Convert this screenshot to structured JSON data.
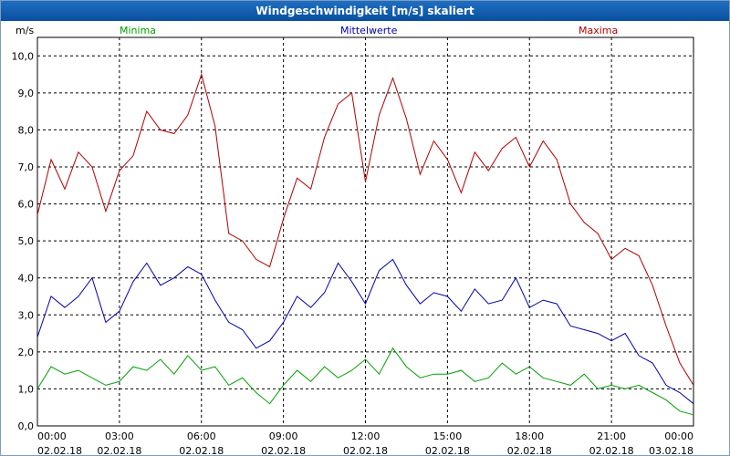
{
  "window": {
    "title": "Windgeschwindigkeit [m/s] skaliert"
  },
  "chart_data": {
    "type": "line",
    "title": "Windgeschwindigkeit [m/s] skaliert",
    "ylabel": "m/s",
    "xlabel": "",
    "ylim": [
      0,
      10.5
    ],
    "grid": true,
    "legend_position": "top",
    "y_ticks": [
      "0,0",
      "1,0",
      "2,0",
      "3,0",
      "4,0",
      "5,0",
      "6,0",
      "7,0",
      "8,0",
      "9,0",
      "10,0"
    ],
    "x_ticks": [
      {
        "time": "00:00",
        "date": "02.02.18"
      },
      {
        "time": "03:00",
        "date": "02.02.18"
      },
      {
        "time": "06:00",
        "date": "02.02.18"
      },
      {
        "time": "09:00",
        "date": "02.02.18"
      },
      {
        "time": "12:00",
        "date": "02.02.18"
      },
      {
        "time": "15:00",
        "date": "02.02.18"
      },
      {
        "time": "18:00",
        "date": "02.02.18"
      },
      {
        "time": "21:00",
        "date": "02.02.18"
      },
      {
        "time": "00:00",
        "date": "03.02.18"
      }
    ],
    "x_unit": "hours",
    "x_range": [
      0,
      24
    ],
    "series": [
      {
        "name": "Minima",
        "color": "#00a000",
        "x": [
          0,
          0.5,
          1,
          1.5,
          2,
          2.5,
          3,
          3.5,
          4,
          4.5,
          5,
          5.5,
          6,
          6.5,
          7,
          7.5,
          8,
          8.5,
          9,
          9.5,
          10,
          10.5,
          11,
          11.5,
          12,
          12.5,
          13,
          13.5,
          14,
          14.5,
          15,
          15.5,
          16,
          16.5,
          17,
          17.5,
          18,
          18.5,
          19,
          19.5,
          20,
          20.5,
          21,
          21.5,
          22,
          22.5,
          23,
          23.5,
          24
        ],
        "values": [
          1.0,
          1.6,
          1.4,
          1.5,
          1.3,
          1.1,
          1.2,
          1.6,
          1.5,
          1.8,
          1.4,
          1.9,
          1.5,
          1.6,
          1.1,
          1.3,
          0.9,
          0.6,
          1.1,
          1.5,
          1.2,
          1.6,
          1.3,
          1.5,
          1.8,
          1.4,
          2.1,
          1.6,
          1.3,
          1.4,
          1.4,
          1.5,
          1.2,
          1.3,
          1.7,
          1.4,
          1.6,
          1.3,
          1.2,
          1.1,
          1.4,
          1.0,
          1.1,
          1.0,
          1.1,
          0.9,
          0.7,
          0.4,
          0.3
        ]
      },
      {
        "name": "Mittelwerte",
        "color": "#0000b0",
        "x": [
          0,
          0.5,
          1,
          1.5,
          2,
          2.5,
          3,
          3.5,
          4,
          4.5,
          5,
          5.5,
          6,
          6.5,
          7,
          7.5,
          8,
          8.5,
          9,
          9.5,
          10,
          10.5,
          11,
          11.5,
          12,
          12.5,
          13,
          13.5,
          14,
          14.5,
          15,
          15.5,
          16,
          16.5,
          17,
          17.5,
          18,
          18.5,
          19,
          19.5,
          20,
          20.5,
          21,
          21.5,
          22,
          22.5,
          23,
          23.5,
          24
        ],
        "values": [
          2.4,
          3.5,
          3.2,
          3.5,
          4.0,
          2.8,
          3.1,
          3.9,
          4.4,
          3.8,
          4.0,
          4.3,
          4.1,
          3.4,
          2.8,
          2.6,
          2.1,
          2.3,
          2.8,
          3.5,
          3.2,
          3.6,
          4.4,
          3.9,
          3.3,
          4.2,
          4.5,
          3.8,
          3.3,
          3.6,
          3.5,
          3.1,
          3.7,
          3.3,
          3.4,
          4.0,
          3.2,
          3.4,
          3.3,
          2.7,
          2.6,
          2.5,
          2.3,
          2.5,
          1.9,
          1.7,
          1.1,
          0.9,
          0.6
        ]
      },
      {
        "name": "Maxima",
        "color": "#b00000",
        "x": [
          0,
          0.5,
          1,
          1.5,
          2,
          2.5,
          3,
          3.5,
          4,
          4.5,
          5,
          5.5,
          6,
          6.5,
          7,
          7.5,
          8,
          8.5,
          9,
          9.5,
          10,
          10.5,
          11,
          11.5,
          12,
          12.5,
          13,
          13.5,
          14,
          14.5,
          15,
          15.5,
          16,
          16.5,
          17,
          17.5,
          18,
          18.5,
          19,
          19.5,
          20,
          20.5,
          21,
          21.5,
          22,
          22.5,
          23,
          23.5,
          24
        ],
        "values": [
          5.7,
          7.2,
          6.4,
          7.4,
          7.0,
          5.8,
          6.9,
          7.3,
          8.5,
          8.0,
          7.9,
          8.4,
          9.5,
          8.1,
          5.2,
          5.0,
          4.5,
          4.3,
          5.6,
          6.7,
          6.4,
          7.8,
          8.7,
          9.0,
          6.6,
          8.4,
          9.4,
          8.3,
          6.8,
          7.7,
          7.2,
          6.3,
          7.4,
          6.9,
          7.5,
          7.8,
          7.0,
          7.7,
          7.2,
          6.0,
          5.5,
          5.2,
          4.5,
          4.8,
          4.6,
          3.8,
          2.7,
          1.7,
          1.1
        ]
      }
    ]
  }
}
